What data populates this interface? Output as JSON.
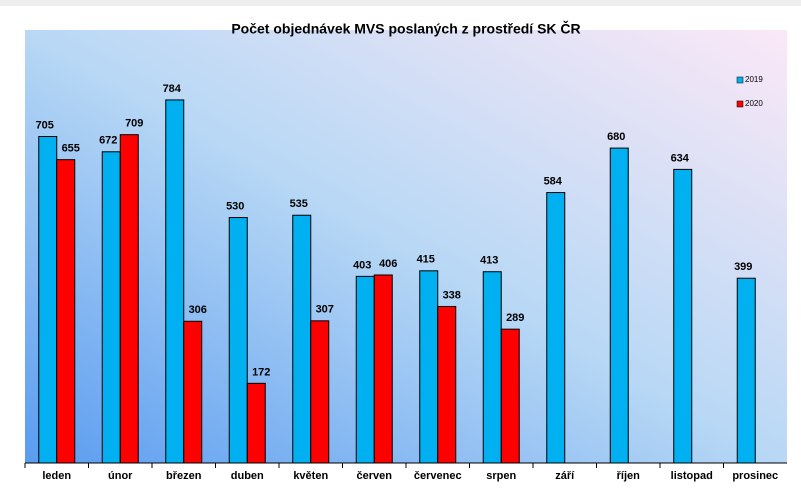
{
  "chart_data": {
    "type": "bar",
    "title": "Počet objednávek MVS poslaných z prostředí SK ČR",
    "categories": [
      "leden",
      "únor",
      "březen",
      "duben",
      "květen",
      "červen",
      "červenec",
      "srpen",
      "září",
      "říjen",
      "listopad",
      "prosinec"
    ],
    "series": [
      {
        "name": "2019",
        "color": "#00b0f0",
        "values": [
          705,
          672,
          784,
          530,
          535,
          403,
          415,
          413,
          584,
          680,
          634,
          399
        ]
      },
      {
        "name": "2020",
        "color": "#ff0000",
        "values": [
          655,
          709,
          306,
          172,
          307,
          406,
          338,
          289,
          null,
          null,
          null,
          null
        ]
      }
    ],
    "ylim": [
      0,
      935
    ],
    "legend": "top-right"
  }
}
